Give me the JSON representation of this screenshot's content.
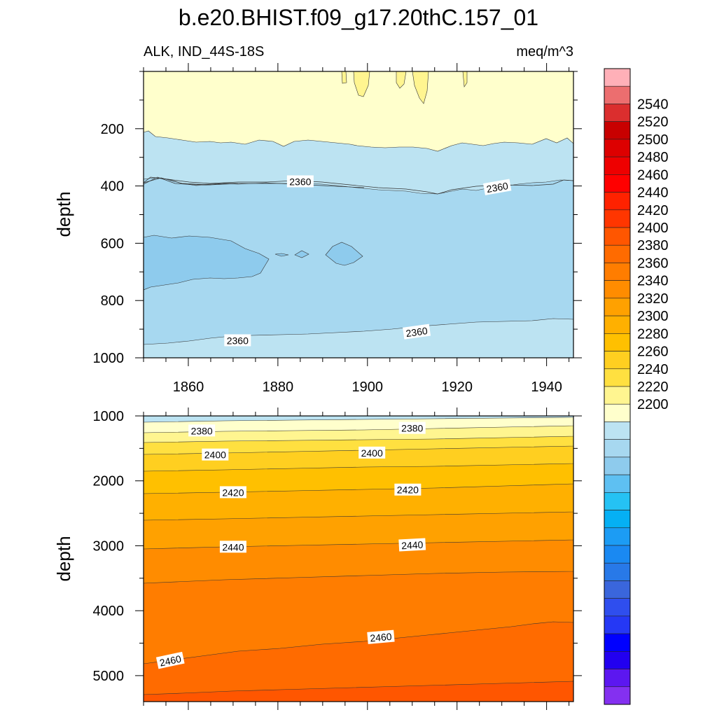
{
  "title": "b.e20.BHIST.f09_g17.20thC.157_01",
  "subtitle_left": "ALK, IND_44S-18S",
  "subtitle_right": "meq/m^3",
  "chart_data": {
    "type": "contour",
    "variable": "ALK",
    "region": "IND_44S-18S",
    "units": "meq/m^3",
    "x_range": [
      1850,
      1946
    ],
    "x_ticks": [
      1860,
      1880,
      1900,
      1920,
      1940
    ],
    "panels": [
      {
        "name": "upper",
        "ylabel": "depth",
        "ylim": [
          0,
          1000
        ],
        "y_inverted": true,
        "y_ticks": [
          200,
          400,
          600,
          800,
          1000
        ],
        "contour_labels": [
          {
            "text": "2360",
            "x": 1885,
            "y": 385,
            "angle": 0
          },
          {
            "text": "2360",
            "x": 1929,
            "y": 405,
            "angle": -10
          },
          {
            "text": "2360",
            "x": 1871,
            "y": 940,
            "angle": 0
          },
          {
            "text": "2360",
            "x": 1911,
            "y": 910,
            "angle": -8
          }
        ]
      },
      {
        "name": "lower",
        "ylabel": "depth",
        "ylim": [
          1000,
          5400
        ],
        "y_inverted": true,
        "y_ticks": [
          1000,
          2000,
          3000,
          4000,
          5000
        ],
        "contour_labels": [
          {
            "text": "2380",
            "x": 1863,
            "y": 1230,
            "angle": 0
          },
          {
            "text": "2380",
            "x": 1910,
            "y": 1190,
            "angle": 0
          },
          {
            "text": "2400",
            "x": 1866,
            "y": 1600,
            "angle": 0
          },
          {
            "text": "2400",
            "x": 1901,
            "y": 1570,
            "angle": 0
          },
          {
            "text": "2420",
            "x": 1870,
            "y": 2180,
            "angle": 0
          },
          {
            "text": "2420",
            "x": 1909,
            "y": 2140,
            "angle": 0
          },
          {
            "text": "2440",
            "x": 1870,
            "y": 3020,
            "angle": 0
          },
          {
            "text": "2440",
            "x": 1910,
            "y": 2990,
            "angle": -3
          },
          {
            "text": "2460",
            "x": 1856,
            "y": 4770,
            "angle": -12
          },
          {
            "text": "2460",
            "x": 1903,
            "y": 4410,
            "angle": -5
          }
        ]
      }
    ],
    "colorbar": {
      "labels": [
        "2540",
        "2520",
        "2500",
        "2480",
        "2460",
        "2440",
        "2420",
        "2400",
        "2380",
        "2360",
        "2340",
        "2320",
        "2300",
        "2280",
        "2260",
        "2240",
        "2220",
        "2200"
      ],
      "colors_top_to_bottom": [
        "#ffb0b8",
        "#ec6e6f",
        "#db2e2e",
        "#c80000",
        "#dd0000",
        "#ee0000",
        "#ff0000",
        "#ff2200",
        "#ff3600",
        "#ff5600",
        "#ff6b00",
        "#ff7d00",
        "#ff8c00",
        "#ffa100",
        "#ffb000",
        "#ffc000",
        "#ffcf20",
        "#ffe040",
        "#fff590",
        "#ffffcc",
        "#bce3f2",
        "#a7d8f0",
        "#8ecbed",
        "#5ec0f2",
        "#25c2f4",
        "#05b0f4",
        "#1c9cf4",
        "#1a89f2",
        "#2879e8",
        "#3a66dc",
        "#2f4eee",
        "#2538f5",
        "#0000ff",
        "#2200f0",
        "#5c17f0",
        "#8430f0"
      ]
    }
  }
}
